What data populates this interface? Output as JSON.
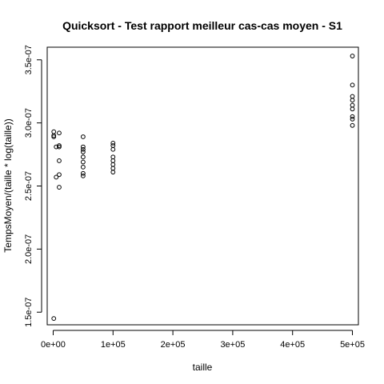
{
  "chart_data": {
    "type": "scatter",
    "title": "Quicksort - Test rapport meilleur cas-cas moyen - S1",
    "xlabel": "taille",
    "ylabel": "TempsMoyen/(taille * log(taille))",
    "xlim": [
      -10000,
      510000
    ],
    "ylim": [
      1.4e-07,
      3.6e-07
    ],
    "grid": false,
    "x_ticks": [
      0,
      100000,
      200000,
      300000,
      400000,
      500000
    ],
    "x_tick_labels": [
      "0e+00",
      "1e+05",
      "2e+05",
      "3e+05",
      "4e+05",
      "5e+05"
    ],
    "y_ticks": [
      1.5e-07,
      2e-07,
      2.5e-07,
      3e-07,
      3.5e-07
    ],
    "y_tick_labels": [
      "1.5e-07",
      "2.0e-07",
      "2.5e-07",
      "3.0e-07",
      "3.5e-07"
    ],
    "points": [
      {
        "x": 1000,
        "y": 2.93e-07
      },
      {
        "x": 1000,
        "y": 2.9e-07
      },
      {
        "x": 1000,
        "y": 2.89e-07
      },
      {
        "x": 1000,
        "y": 1.45e-07
      },
      {
        "x": 5000,
        "y": 2.81e-07
      },
      {
        "x": 5000,
        "y": 2.57e-07
      },
      {
        "x": 10000,
        "y": 2.92e-07
      },
      {
        "x": 10000,
        "y": 2.82e-07
      },
      {
        "x": 10000,
        "y": 2.81e-07
      },
      {
        "x": 10000,
        "y": 2.7e-07
      },
      {
        "x": 10000,
        "y": 2.59e-07
      },
      {
        "x": 10000,
        "y": 2.49e-07
      },
      {
        "x": 50000,
        "y": 2.89e-07
      },
      {
        "x": 50000,
        "y": 2.81e-07
      },
      {
        "x": 50000,
        "y": 2.79e-07
      },
      {
        "x": 50000,
        "y": 2.77e-07
      },
      {
        "x": 50000,
        "y": 2.73e-07
      },
      {
        "x": 50000,
        "y": 2.69e-07
      },
      {
        "x": 50000,
        "y": 2.65e-07
      },
      {
        "x": 50000,
        "y": 2.6e-07
      },
      {
        "x": 50000,
        "y": 2.58e-07
      },
      {
        "x": 100000,
        "y": 2.84e-07
      },
      {
        "x": 100000,
        "y": 2.82e-07
      },
      {
        "x": 100000,
        "y": 2.79e-07
      },
      {
        "x": 100000,
        "y": 2.73e-07
      },
      {
        "x": 100000,
        "y": 2.7e-07
      },
      {
        "x": 100000,
        "y": 2.67e-07
      },
      {
        "x": 100000,
        "y": 2.64e-07
      },
      {
        "x": 100000,
        "y": 2.61e-07
      },
      {
        "x": 500000,
        "y": 3.53e-07
      },
      {
        "x": 500000,
        "y": 3.3e-07
      },
      {
        "x": 500000,
        "y": 3.21e-07
      },
      {
        "x": 500000,
        "y": 3.18e-07
      },
      {
        "x": 500000,
        "y": 3.14e-07
      },
      {
        "x": 500000,
        "y": 3.11e-07
      },
      {
        "x": 500000,
        "y": 3.05e-07
      },
      {
        "x": 500000,
        "y": 3.03e-07
      },
      {
        "x": 500000,
        "y": 2.98e-07
      }
    ]
  }
}
